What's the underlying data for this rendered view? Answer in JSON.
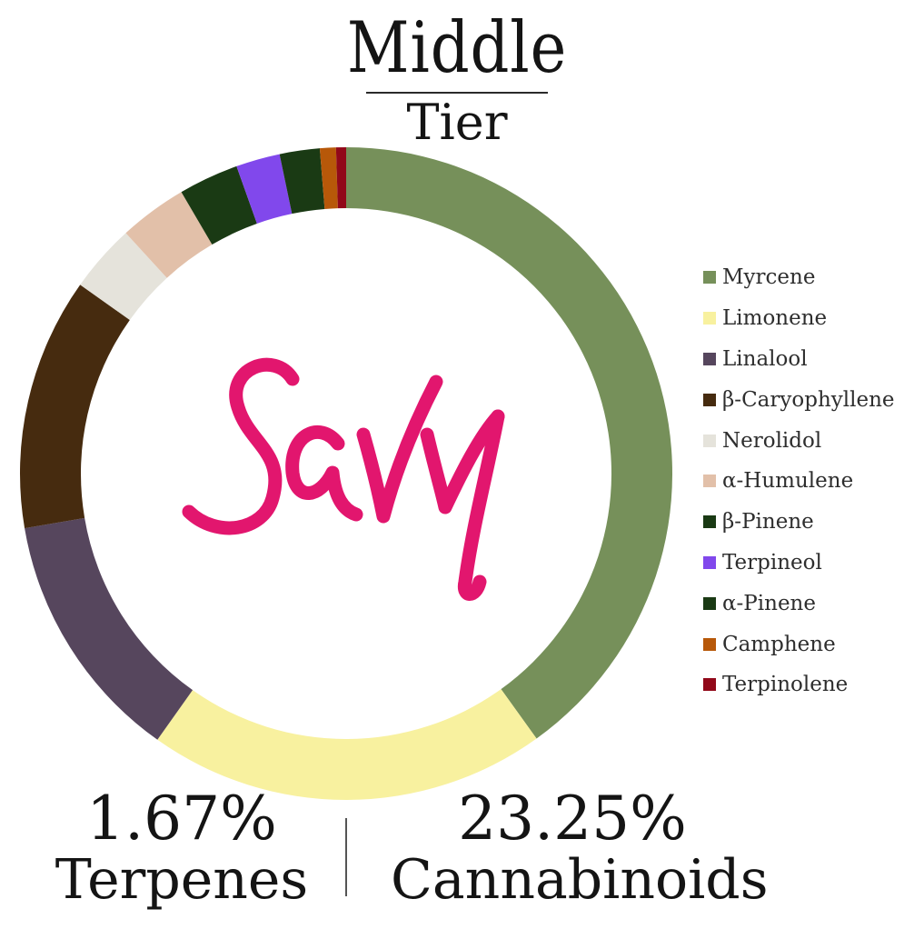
{
  "title": {
    "main": "Middle",
    "sub": "Tier"
  },
  "chart_data": {
    "type": "pie",
    "series": [
      {
        "name": "Myrcene",
        "value": 40.4,
        "color": "#76905A"
      },
      {
        "name": "Limonene",
        "value": 19.9,
        "color": "#F8F19F"
      },
      {
        "name": "Linalool",
        "value": 12.6,
        "color": "#56465D"
      },
      {
        "name": "β-Caryophyllene",
        "value": 12.6,
        "color": "#462B0F"
      },
      {
        "name": "Nerolidol",
        "value": 3.4,
        "color": "#E5E3DB"
      },
      {
        "name": "α-Humulene",
        "value": 3.4,
        "color": "#E2C0A9"
      },
      {
        "name": "β-Pinene",
        "value": 3.0,
        "color": "#1A3A14"
      },
      {
        "name": "Terpineol",
        "value": 2.2,
        "color": "#8148EC"
      },
      {
        "name": "α-Pinene",
        "value": 2.0,
        "color": "#1A3A14"
      },
      {
        "name": "Camphene",
        "value": 0.8,
        "color": "#B75809"
      },
      {
        "name": "Terpinolene",
        "value": 0.5,
        "color": "#910819"
      }
    ],
    "legend_position": "right"
  },
  "logo": {
    "text": "Savvy",
    "color": "#E2166E"
  },
  "stats": {
    "terpenes": {
      "value": "1.67%",
      "label": "Terpenes"
    },
    "cannabinoids": {
      "value": "23.25%",
      "label": "Cannabinoids"
    }
  }
}
